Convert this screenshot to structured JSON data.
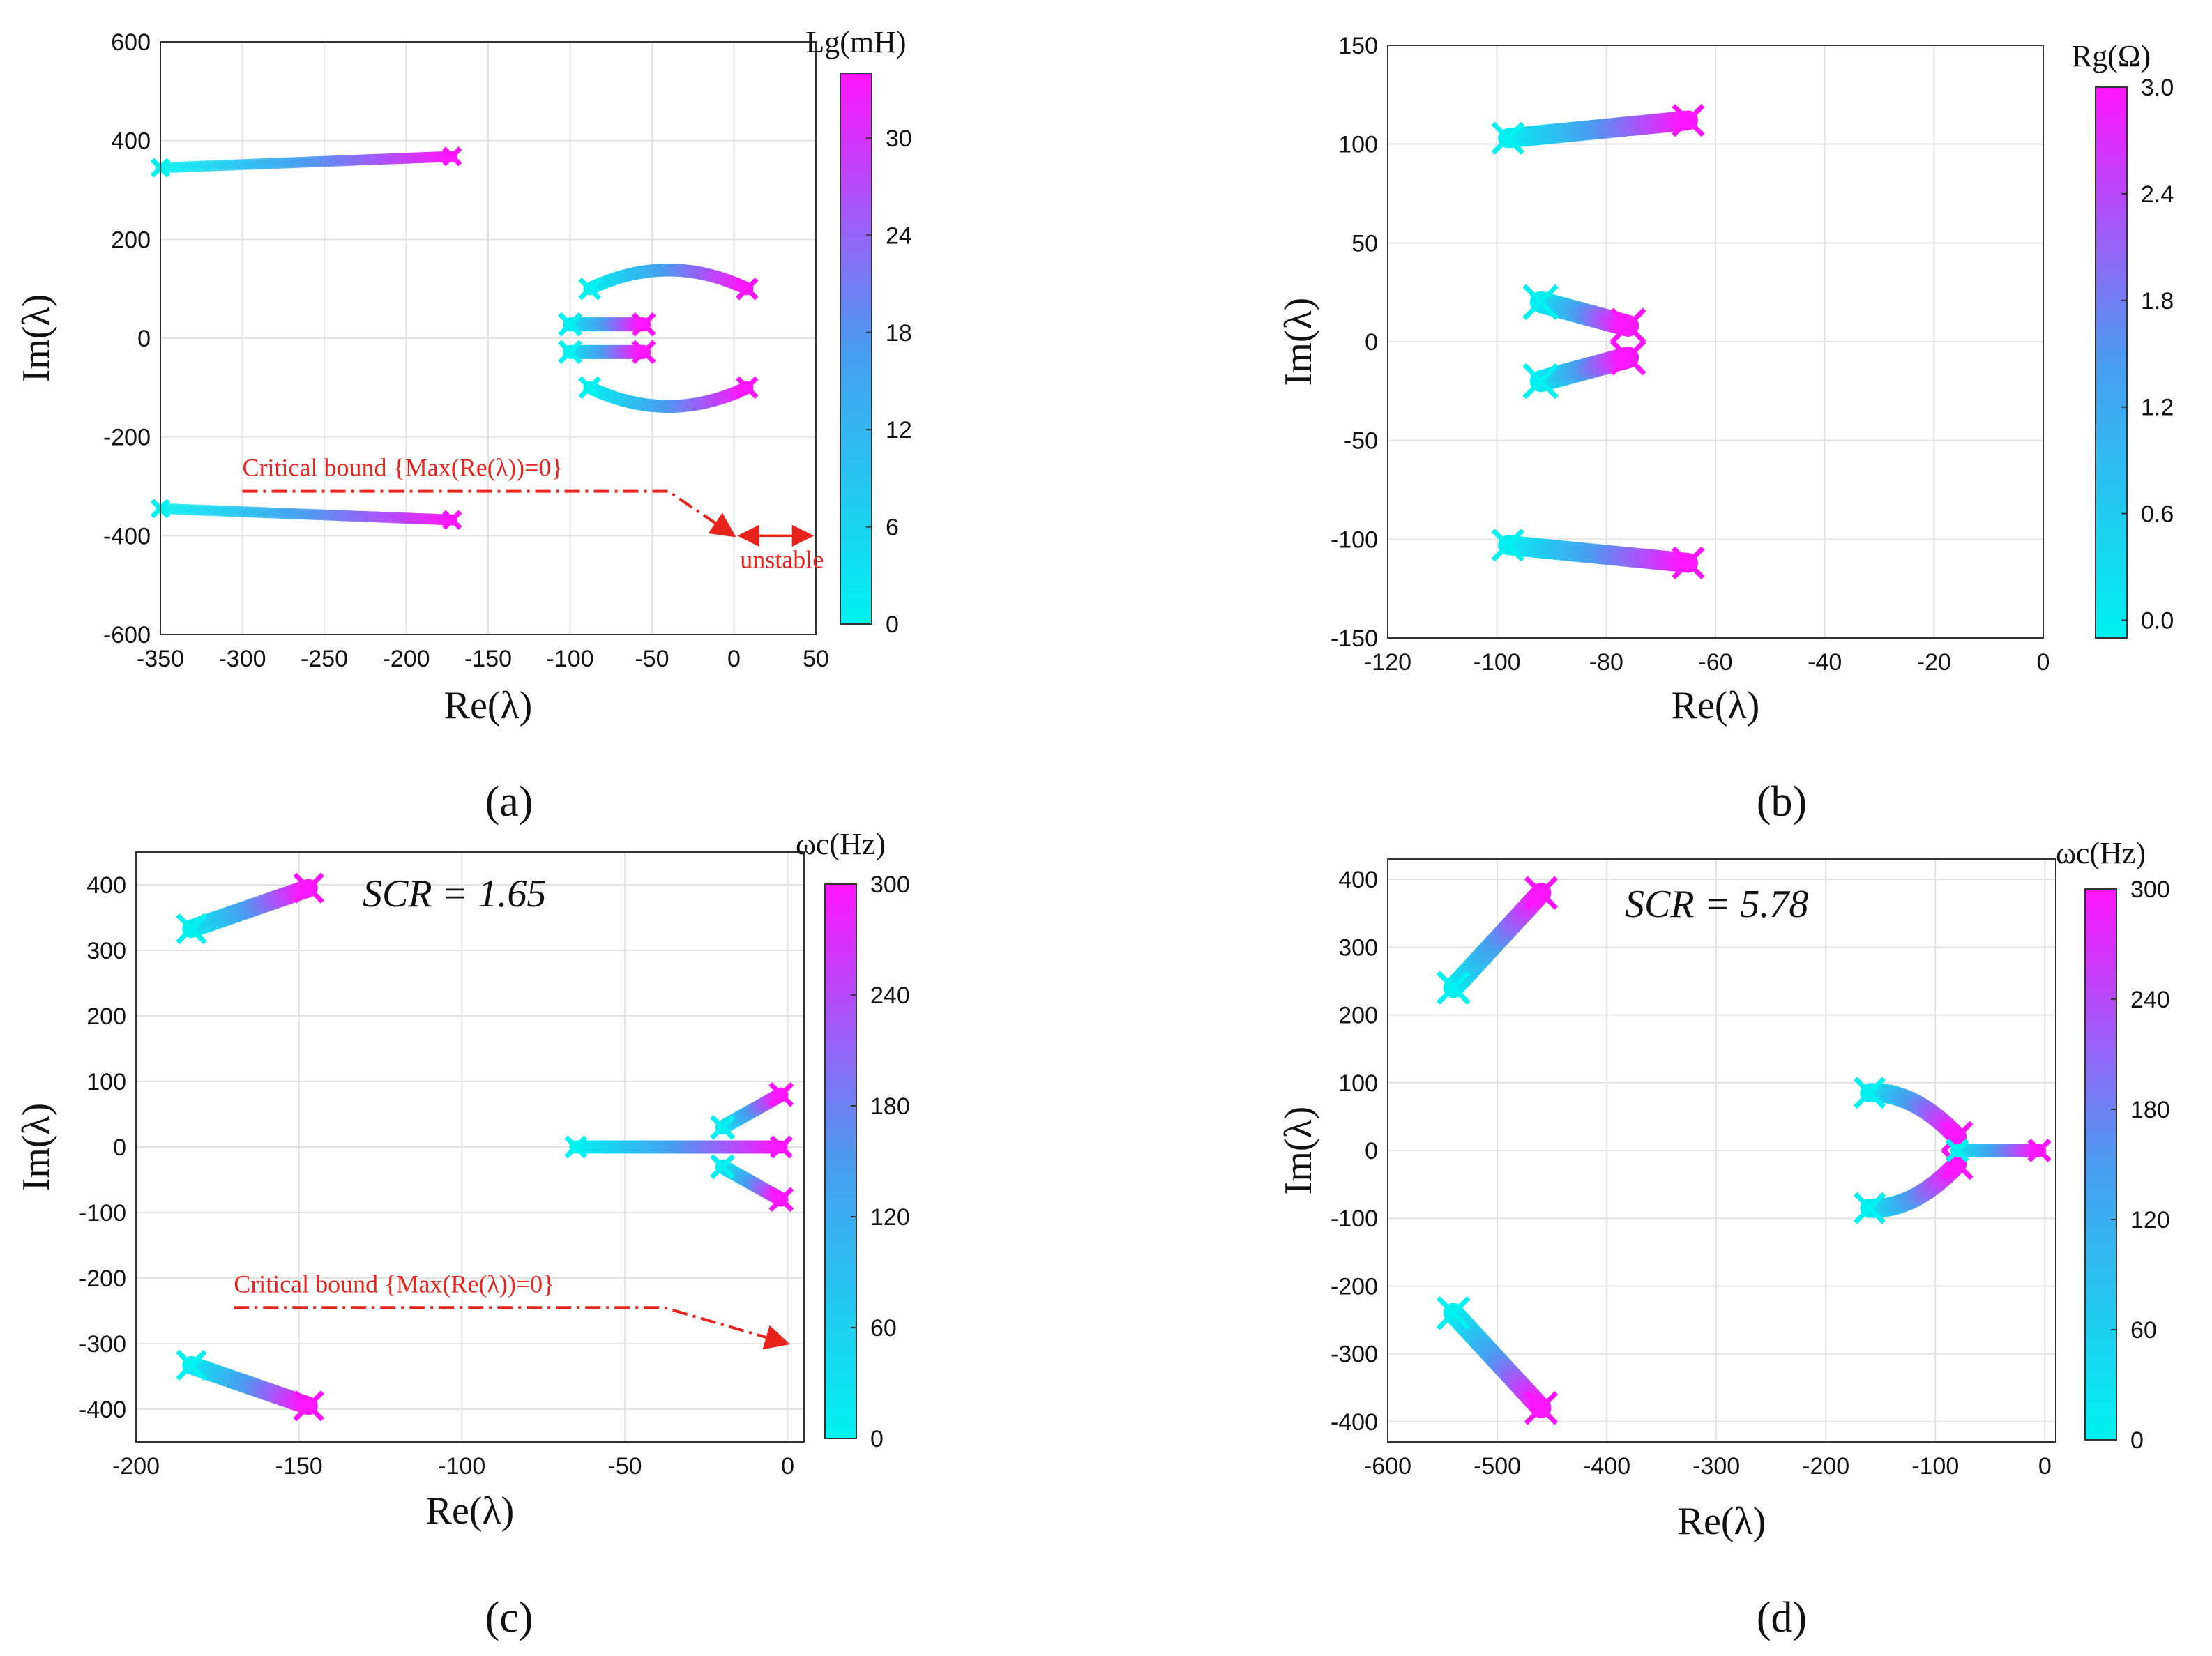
{
  "figure": {
    "panel_labels": [
      "(a)",
      "(b)",
      "(c)",
      "(d)"
    ]
  },
  "colors": {
    "low": "#00f2f0",
    "mid": "#4a9cf0",
    "high": "#ff14ff",
    "annotation": "#e8231b"
  },
  "chart_data": [
    {
      "type": "scatter",
      "panel": "(a)",
      "xlabel": "Re(λ)",
      "ylabel": "Im(λ)",
      "xlim": [
        -350,
        50
      ],
      "ylim": [
        -600,
        600
      ],
      "xticks": [
        -350,
        -300,
        -250,
        -200,
        -150,
        -100,
        -50,
        0,
        50
      ],
      "yticks": [
        600,
        400,
        200,
        0,
        -200,
        -400,
        -600
      ],
      "grid": true,
      "colorbar": {
        "label": "Lg(mH)",
        "min": 0,
        "max": 34,
        "ticks": [
          0,
          6,
          12,
          18,
          24,
          30
        ]
      },
      "annotations": [
        {
          "text": "Critical bound {Max(Re(λ))=0}",
          "line_from": [
            -300,
            -310
          ],
          "line_via": [
            -40,
            -310
          ],
          "arrow_to": [
            0,
            -400
          ]
        },
        {
          "text": "unstable",
          "range": [
            0,
            50
          ],
          "at_y": -400
        }
      ],
      "series": [
        {
          "name": "upper high-frequency branch",
          "x_start": -350,
          "x_end": -172,
          "y_start": 345,
          "y_end": 368,
          "spread": 22
        },
        {
          "name": "lower high-frequency branch",
          "x_start": -350,
          "x_end": -172,
          "y_start": -345,
          "y_end": -368,
          "spread": 22
        },
        {
          "name": "upper arc",
          "x_start": -88,
          "x_end": 8,
          "y_start": 100,
          "y_end": 100,
          "bulge": 38,
          "spread": 26
        },
        {
          "name": "inner upper arc",
          "x_start": -100,
          "x_end": -55,
          "y_start": 28,
          "y_end": 28,
          "bulge": 0,
          "spread": 28
        },
        {
          "name": "inner lower arc",
          "x_start": -100,
          "x_end": -55,
          "y_start": -28,
          "y_end": -28,
          "bulge": 0,
          "spread": 28
        },
        {
          "name": "lower arc",
          "x_start": -88,
          "x_end": 8,
          "y_start": -100,
          "y_end": -100,
          "bulge": -38,
          "spread": 26
        }
      ]
    },
    {
      "type": "scatter",
      "panel": "(b)",
      "xlabel": "Re(λ)",
      "ylabel": "Im(λ)",
      "xlim": [
        -120,
        0
      ],
      "ylim": [
        -150,
        150
      ],
      "xticks": [
        -120,
        -100,
        -80,
        -60,
        -40,
        -20,
        0
      ],
      "yticks": [
        150,
        100,
        50,
        0,
        -50,
        -100,
        -150
      ],
      "grid": true,
      "colorbar": {
        "label": "Rg(Ω)",
        "min": -0.1,
        "max": 3.0,
        "ticks": [
          0.0,
          0.6,
          1.2,
          1.8,
          2.4,
          3.0
        ]
      },
      "series": [
        {
          "name": "upper branch",
          "x_start": -98,
          "x_end": -65,
          "y_start": 103,
          "y_end": 112,
          "spread": 10
        },
        {
          "name": "middle upper branch",
          "x_start": -92,
          "x_end": -76,
          "y_start": 20,
          "y_end": 8,
          "spread": 11
        },
        {
          "name": "middle lower branch",
          "x_start": -92,
          "x_end": -76,
          "y_start": -20,
          "y_end": -8,
          "spread": 11
        },
        {
          "name": "lower branch",
          "x_start": -98,
          "x_end": -65,
          "y_start": -103,
          "y_end": -112,
          "spread": 10
        }
      ]
    },
    {
      "type": "scatter",
      "panel": "(c)",
      "xlabel": "Re(λ)",
      "ylabel": "Im(λ)",
      "xlim": [
        -200,
        5
      ],
      "ylim": [
        -450,
        450
      ],
      "xticks": [
        -200,
        -150,
        -100,
        -50,
        0
      ],
      "yticks": [
        400,
        300,
        200,
        100,
        0,
        -100,
        -200,
        -300,
        -400
      ],
      "grid": true,
      "text": "SCR = 1.65",
      "colorbar": {
        "label": "ωc(Hz)",
        "min": 0,
        "max": 300,
        "ticks": [
          0,
          60,
          120,
          180,
          240,
          300
        ]
      },
      "annotations": [
        {
          "text": "Critical bound {Max(Re(λ))=0}",
          "line_from": [
            -170,
            -245
          ],
          "line_via": [
            -38,
            -245
          ],
          "arrow_to": [
            0,
            -300
          ]
        }
      ],
      "series": [
        {
          "name": "upper branch",
          "x_start": -183,
          "x_end": -147,
          "y_start": 333,
          "y_end": 395,
          "spread": 28
        },
        {
          "name": "lower branch",
          "x_start": -183,
          "x_end": -147,
          "y_start": -333,
          "y_end": -395,
          "spread": 28
        },
        {
          "name": "real-axis branch",
          "x_start": -65,
          "x_end": -2,
          "y_start": 0,
          "y_end": 0,
          "spread": 20
        },
        {
          "name": "upper near-axis arc",
          "x_start": -20,
          "x_end": -2,
          "y_start": 30,
          "y_end": 80,
          "spread": 22
        },
        {
          "name": "lower near-axis arc",
          "x_start": -20,
          "x_end": -2,
          "y_start": -30,
          "y_end": -80,
          "spread": 22
        }
      ]
    },
    {
      "type": "scatter",
      "panel": "(d)",
      "xlabel": "Re(λ)",
      "ylabel": "Im(λ)",
      "xlim": [
        -600,
        10
      ],
      "ylim": [
        -430,
        430
      ],
      "xticks": [
        -600,
        -500,
        -400,
        -300,
        -200,
        -100,
        0
      ],
      "yticks": [
        400,
        300,
        200,
        100,
        0,
        -100,
        -200,
        -300,
        -400
      ],
      "grid": true,
      "text": "SCR = 5.78",
      "colorbar": {
        "label": "ωc(Hz)",
        "min": 0,
        "max": 300,
        "ticks": [
          0,
          60,
          120,
          180,
          240,
          300
        ]
      },
      "series": [
        {
          "name": "upper branch",
          "x_start": -540,
          "x_end": -460,
          "y_start": 240,
          "y_end": 380,
          "spread": 30
        },
        {
          "name": "lower branch",
          "x_start": -540,
          "x_end": -460,
          "y_start": -240,
          "y_end": -380,
          "spread": 30
        },
        {
          "name": "upper arc",
          "x_start": -160,
          "x_end": -80,
          "y_start": 85,
          "y_end": 20,
          "bulge": 18,
          "spread": 28
        },
        {
          "name": "lower arc",
          "x_start": -160,
          "x_end": -80,
          "y_start": -85,
          "y_end": -20,
          "bulge": -18,
          "spread": 28
        },
        {
          "name": "real-axis branch",
          "x_start": -80,
          "x_end": -5,
          "y_start": 0,
          "y_end": 0,
          "spread": 20
        }
      ]
    }
  ]
}
